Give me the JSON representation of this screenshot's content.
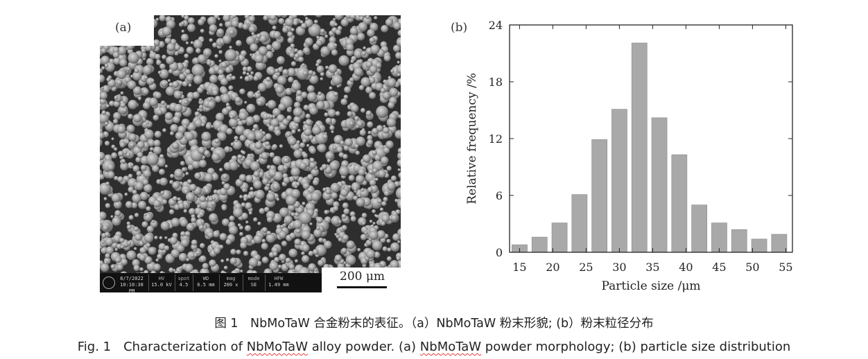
{
  "panel_a": {
    "label": "(a)",
    "scale_bar": "200 μm",
    "databar": {
      "date_time": [
        "8/7/2022",
        "10:10:38 PM"
      ],
      "columns": [
        {
          "header": "HV",
          "value": "15.0 kV"
        },
        {
          "header": "spot",
          "value": "4.5"
        },
        {
          "header": "WD",
          "value": "6.5 mm"
        },
        {
          "header": "mag",
          "value": "200 x"
        },
        {
          "header": "mode",
          "value": "SE"
        },
        {
          "header": "HFW",
          "value": "1.49 mm"
        }
      ]
    }
  },
  "panel_b": {
    "label": "(b)"
  },
  "chart_data": {
    "type": "bar",
    "x": [
      15,
      18,
      21,
      24,
      27,
      30,
      33,
      36,
      39,
      42,
      45,
      48,
      51,
      54
    ],
    "values": [
      0.8,
      1.6,
      3.1,
      6.1,
      11.9,
      15.1,
      22.1,
      14.2,
      10.3,
      5.0,
      3.1,
      2.4,
      1.4,
      1.9
    ],
    "xlabel": "Particle size /μm",
    "ylabel": "Relative frequency /%",
    "xlim": [
      13.5,
      56
    ],
    "ylim": [
      0,
      24
    ],
    "xticks": [
      15,
      20,
      25,
      30,
      35,
      40,
      45,
      50,
      55
    ],
    "yticks": [
      0,
      6,
      12,
      18,
      24
    ],
    "bar_width": 2.3,
    "grid": false,
    "bar_color": "#a9a9a9"
  },
  "captions": {
    "cn": "图 1　NbMoTaW 合金粉末的表征。（a）NbMoTaW 粉末形貌; (b）粉末粒径分布",
    "en_prefix": "Fig. 1　Characterization of ",
    "en_mid1": " alloy powder. (a) ",
    "en_suffix": " powder morphology; (b) particle size distribution",
    "alloy": "NbMoTaW"
  }
}
